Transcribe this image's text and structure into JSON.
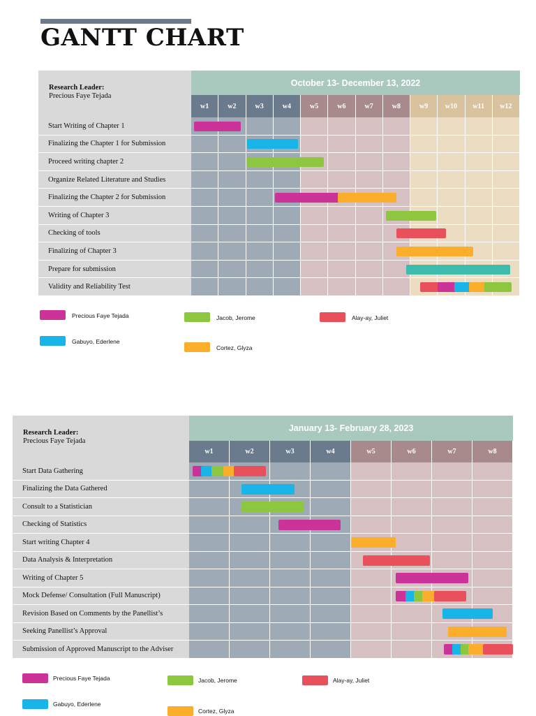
{
  "title": "GANTT CHART",
  "colors": {
    "precious": "#cc3399",
    "gabuyo": "#19b4e8",
    "jacob": "#8dc63f",
    "alay": "#e8505b",
    "cortez": "#fbae2c",
    "teal": "#3dbcae",
    "range_header": "#a9c9bf",
    "week_slate": "#6b7b8e",
    "week_mauve": "#a98a8c",
    "week_tan": "#d9c39e",
    "grid_slate": "#9eabb7",
    "grid_mauve": "#d6c0c2",
    "grid_tan": "#ecdcc2",
    "label_bg": "#d9d9d9"
  },
  "legend": [
    {
      "name": "Precious Faye Tejada",
      "color_key": "precious"
    },
    {
      "name": "Jacob, Jerome",
      "color_key": "jacob"
    },
    {
      "name": "Alay-ay, Juliet",
      "color_key": "alay"
    },
    {
      "name": "Gabuyo, Ederlene",
      "color_key": "gabuyo"
    },
    {
      "name": "Cortez, Glyza",
      "color_key": "cortez"
    }
  ],
  "charts": [
    {
      "leader_title": "Research Leader:",
      "leader_name": "Precious Faye Tejada",
      "date_range": "October 13- December 13, 2022",
      "weeks": [
        "w1",
        "w2",
        "w3",
        "w4",
        "w5",
        "w6",
        "w7",
        "w8",
        "w9",
        "w10",
        "w11",
        "w12"
      ],
      "week_groups": [
        "slate",
        "slate",
        "slate",
        "slate",
        "mauve",
        "mauve",
        "mauve",
        "mauve",
        "tan",
        "tan",
        "tan",
        "tan"
      ],
      "tasks": [
        {
          "label": "Start Writing of Chapter 1",
          "bars": [
            {
              "start": 0.1,
              "end": 1.8,
              "color_key": "precious"
            }
          ]
        },
        {
          "label": "Finalizing the Chapter 1 for Submission",
          "bars": [
            {
              "start": 2.05,
              "end": 3.9,
              "color_key": "gabuyo"
            }
          ]
        },
        {
          "label": "Proceed writing chapter 2",
          "bars": [
            {
              "start": 2.05,
              "end": 4.85,
              "color_key": "jacob"
            }
          ]
        },
        {
          "label": "Organize Related Literature and Studies",
          "bars": []
        },
        {
          "label": "Finalizing the Chapter 2 for Submission",
          "bars": [
            {
              "start": 3.05,
              "end": 5.85,
              "color_key": "precious"
            },
            {
              "start": 5.35,
              "end": 7.5,
              "color_key": "cortez"
            }
          ]
        },
        {
          "label": "Writing of Chapter 3",
          "bars": [
            {
              "start": 7.1,
              "end": 8.95,
              "color_key": "jacob"
            }
          ]
        },
        {
          "label": "Checking of tools",
          "bars": [
            {
              "start": 7.5,
              "end": 9.3,
              "color_key": "alay"
            }
          ]
        },
        {
          "label": "Finalizing of Chapter 3",
          "bars": [
            {
              "start": 7.5,
              "end": 10.3,
              "color_key": "cortez"
            }
          ]
        },
        {
          "label": "Prepare for submission",
          "bars": [
            {
              "start": 7.85,
              "end": 11.65,
              "color_key": "teal"
            }
          ]
        },
        {
          "label": "Validity and Reliability Test",
          "bars": [
            {
              "start": 8.35,
              "end": 9.1,
              "color_key": "alay"
            },
            {
              "start": 9.0,
              "end": 9.65,
              "color_key": "precious"
            },
            {
              "start": 9.6,
              "end": 10.2,
              "color_key": "gabuyo"
            },
            {
              "start": 10.15,
              "end": 10.75,
              "color_key": "cortez"
            },
            {
              "start": 10.7,
              "end": 11.7,
              "color_key": "jacob"
            }
          ]
        }
      ]
    },
    {
      "leader_title": "Research Leader:",
      "leader_name": "Precious Faye Tejada",
      "date_range": "January 13- February 28, 2023",
      "weeks": [
        "w1",
        "w2",
        "w3",
        "w4",
        "w5",
        "w6",
        "w7",
        "w8"
      ],
      "week_groups": [
        "slate",
        "slate",
        "slate",
        "slate",
        "mauve",
        "mauve",
        "mauve",
        "mauve"
      ],
      "tasks": [
        {
          "label": "Start Data Gathering",
          "bars": [
            {
              "start": 0.08,
              "end": 0.35,
              "color_key": "precious"
            },
            {
              "start": 0.3,
              "end": 0.6,
              "color_key": "gabuyo"
            },
            {
              "start": 0.55,
              "end": 0.9,
              "color_key": "jacob"
            },
            {
              "start": 0.85,
              "end": 1.15,
              "color_key": "cortez"
            },
            {
              "start": 1.1,
              "end": 1.9,
              "color_key": "alay"
            }
          ]
        },
        {
          "label": "Finalizing the Data Gathered",
          "bars": [
            {
              "start": 1.3,
              "end": 2.6,
              "color_key": "gabuyo"
            }
          ]
        },
        {
          "label": "Consult to a Statistician",
          "bars": [
            {
              "start": 1.3,
              "end": 2.85,
              "color_key": "jacob"
            }
          ]
        },
        {
          "label": "Checking of Statistics",
          "bars": [
            {
              "start": 2.2,
              "end": 3.75,
              "color_key": "precious"
            }
          ]
        },
        {
          "label": "Start writing Chapter 4",
          "bars": [
            {
              "start": 4.0,
              "end": 5.1,
              "color_key": "cortez"
            }
          ]
        },
        {
          "label": "Data Analysis & Interpretation",
          "bars": [
            {
              "start": 4.3,
              "end": 5.95,
              "color_key": "alay"
            }
          ]
        },
        {
          "label": "Writing of Chapter 5",
          "bars": [
            {
              "start": 5.1,
              "end": 6.9,
              "color_key": "precious"
            }
          ]
        },
        {
          "label": "Mock Defense/ Consultation (Full Manuscript)",
          "bars": [
            {
              "start": 5.1,
              "end": 5.45,
              "color_key": "precious"
            },
            {
              "start": 5.35,
              "end": 5.65,
              "color_key": "gabuyo"
            },
            {
              "start": 5.55,
              "end": 5.85,
              "color_key": "jacob"
            },
            {
              "start": 5.75,
              "end": 6.15,
              "color_key": "cortez"
            },
            {
              "start": 6.05,
              "end": 6.85,
              "color_key": "alay"
            }
          ]
        },
        {
          "label": "Revision Based on Comments by the Panellist’s",
          "bars": [
            {
              "start": 6.25,
              "end": 7.5,
              "color_key": "gabuyo"
            }
          ]
        },
        {
          "label": "Seeking Panellist’s Approval",
          "bars": [
            {
              "start": 6.4,
              "end": 7.85,
              "color_key": "cortez"
            }
          ]
        },
        {
          "label": "Submission of Approved Manuscript to the Adviser",
          "bars": [
            {
              "start": 6.3,
              "end": 6.6,
              "color_key": "precious"
            },
            {
              "start": 6.5,
              "end": 6.8,
              "color_key": "gabuyo"
            },
            {
              "start": 6.7,
              "end": 7.0,
              "color_key": "jacob"
            },
            {
              "start": 6.9,
              "end": 7.75,
              "color_key": "cortez"
            },
            {
              "start": 7.25,
              "end": 8.0,
              "color_key": "alay"
            }
          ]
        }
      ]
    }
  ]
}
